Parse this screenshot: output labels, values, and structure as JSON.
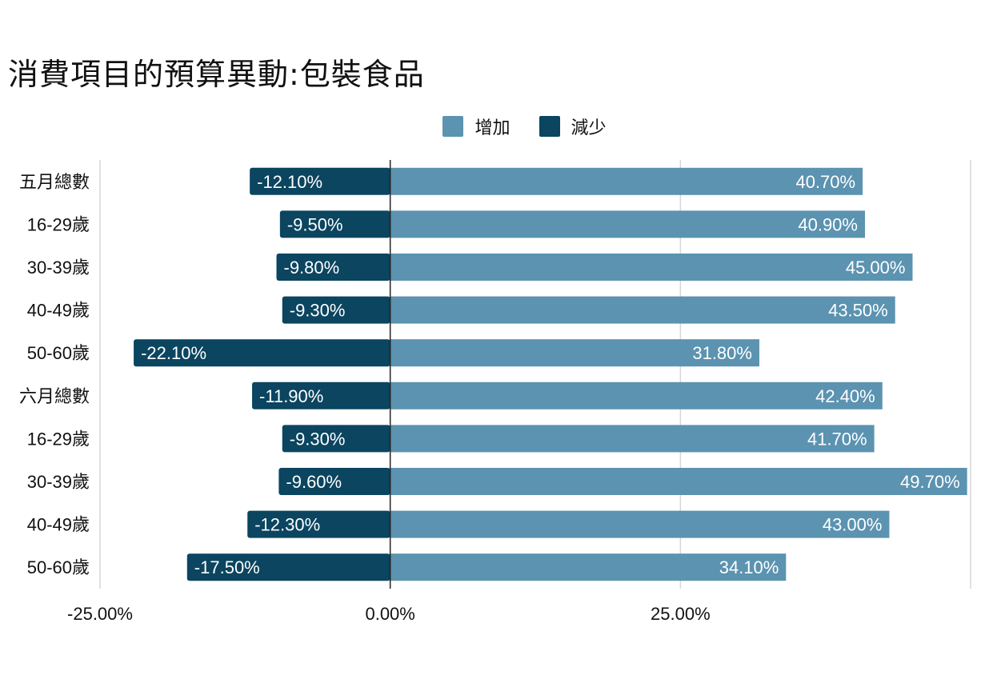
{
  "chart_data": {
    "type": "bar",
    "orientation": "horizontal",
    "stacked": "diverging",
    "title": "消費項目的預算異動:包裝食品",
    "categories": [
      "五月總數",
      "16-29歲",
      "30-39歲",
      "40-49歲",
      "50-60歲",
      "六月總數",
      "16-29歲",
      "30-39歲",
      "40-49歲",
      "50-60歲"
    ],
    "series": [
      {
        "name": "增加",
        "color": "#5b93b1",
        "values": [
          40.7,
          40.9,
          45.0,
          43.5,
          31.8,
          42.4,
          41.7,
          49.7,
          43.0,
          34.1
        ],
        "labels": [
          "40.70%",
          "40.90%",
          "45.00%",
          "43.50%",
          "31.80%",
          "42.40%",
          "41.70%",
          "49.70%",
          "43.00%",
          "34.10%"
        ]
      },
      {
        "name": "減少",
        "color": "#0b4560",
        "values": [
          -12.1,
          -9.5,
          -9.8,
          -9.3,
          -22.1,
          -11.9,
          -9.3,
          -9.6,
          -12.3,
          -17.5
        ],
        "labels": [
          "-12.10%",
          "-9.50%",
          "-9.80%",
          "-9.30%",
          "-22.10%",
          "-11.90%",
          "-9.30%",
          "-9.60%",
          "-12.30%",
          "-17.50%"
        ]
      }
    ],
    "xlim": [
      -25,
      50
    ],
    "xticks": [
      -25,
      0,
      25
    ],
    "xtick_labels": [
      "-25.00%",
      "0.00%",
      "25.00%"
    ],
    "grid": true,
    "legend_position": "top-center"
  }
}
